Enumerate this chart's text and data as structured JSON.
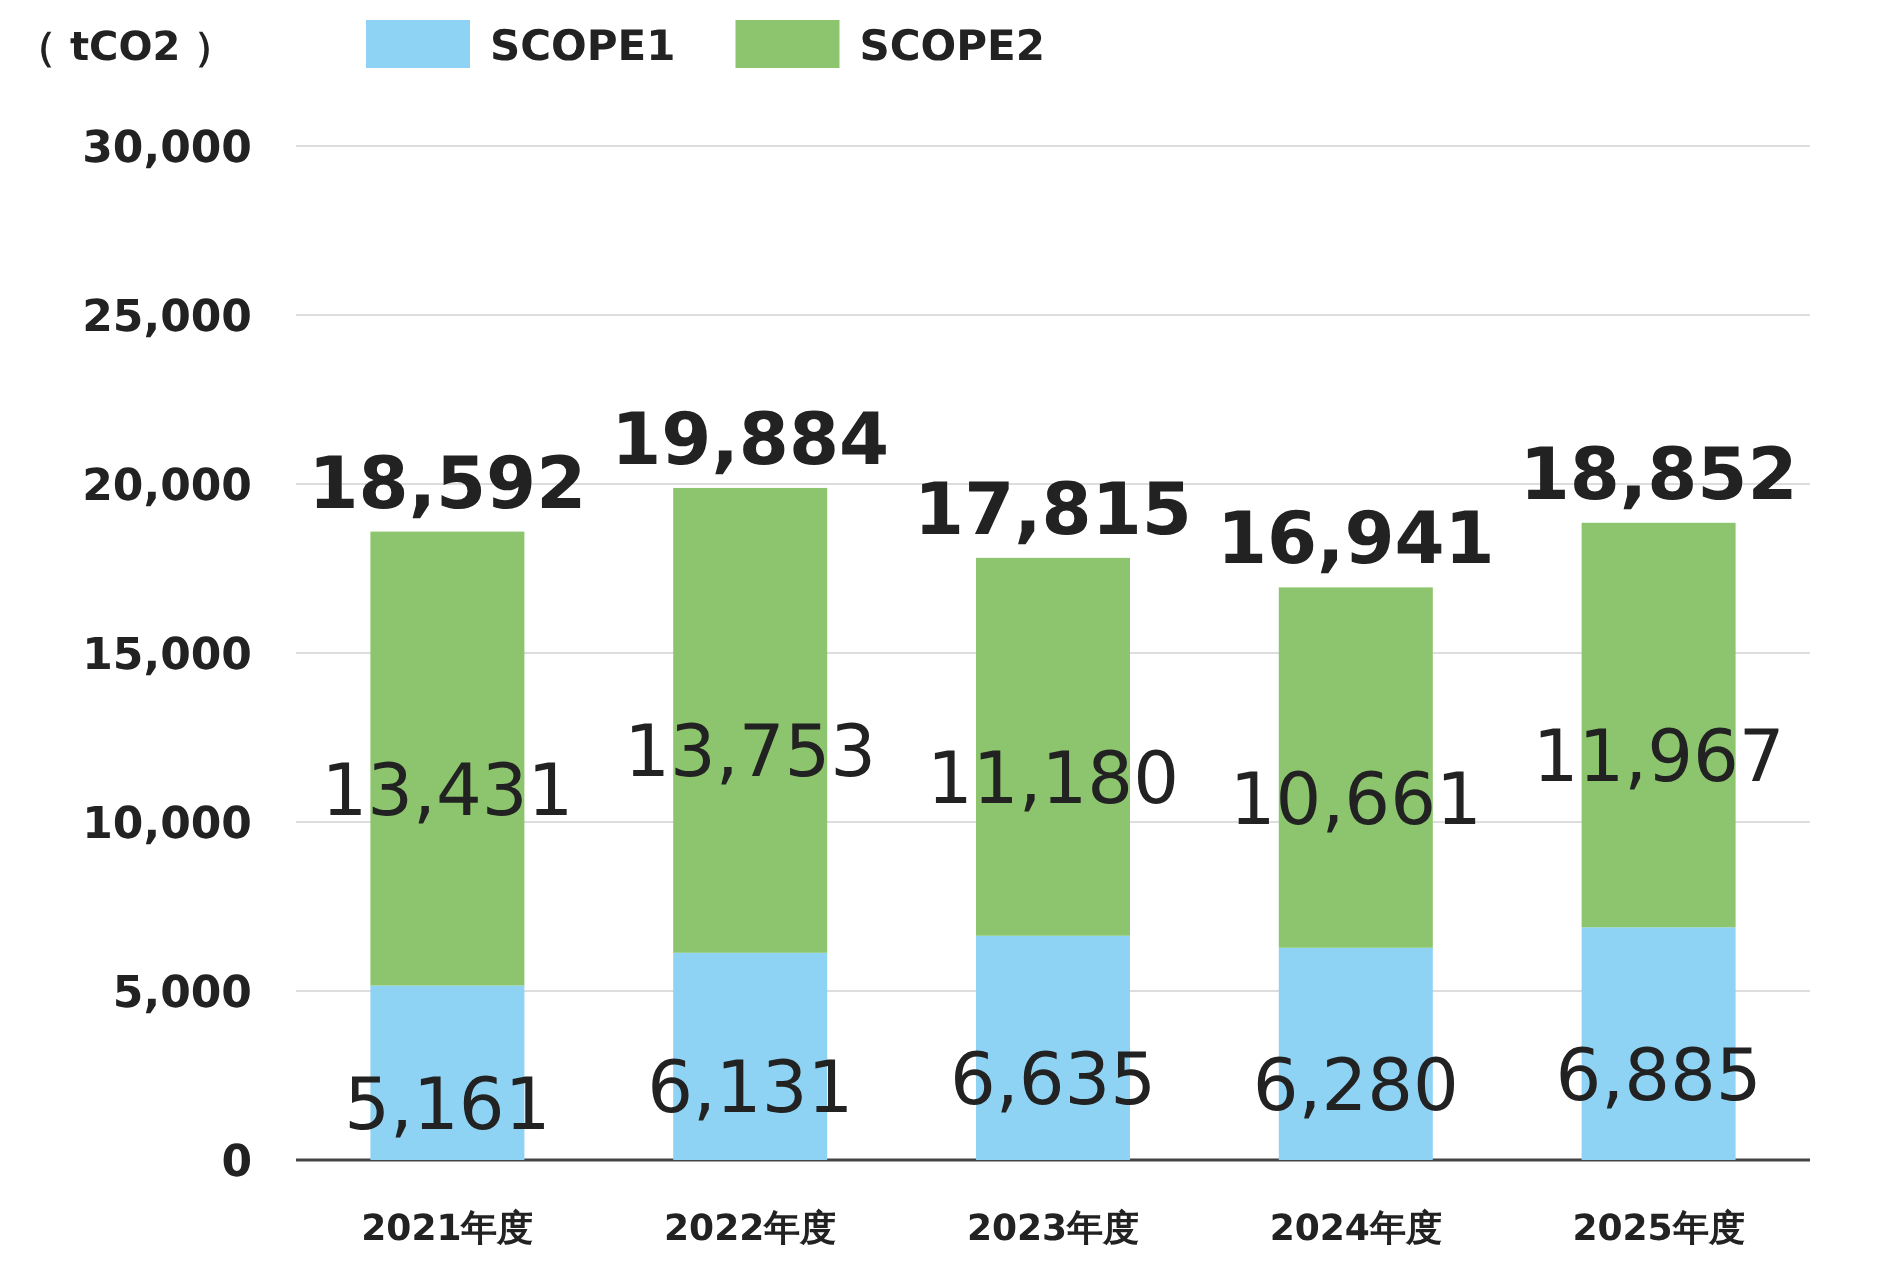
{
  "chart_data": {
    "type": "bar",
    "stacked": true,
    "ylabel": "（ tCO2 ）",
    "categories": [
      "2021年度",
      "2022年度",
      "2023年度",
      "2024年度",
      "2025年度"
    ],
    "series": [
      {
        "name": "SCOPE1",
        "color": "#8fd3f4",
        "values": [
          5161,
          6131,
          6635,
          6280,
          6885
        ],
        "value_labels": [
          "5,161",
          "6,131",
          "6,635",
          "6,280",
          "6,885"
        ]
      },
      {
        "name": "SCOPE2",
        "color": "#8cc56d",
        "values": [
          13431,
          13753,
          11180,
          10661,
          11967
        ],
        "value_labels": [
          "13,431",
          "13,753",
          "11,180",
          "10,661",
          "11,967"
        ]
      }
    ],
    "totals": [
      "18,592",
      "19,884",
      "17,815",
      "16,941",
      "18,852"
    ],
    "ylim": [
      0,
      30000
    ],
    "yticks": [
      0,
      {
        "value": 5000,
        "label": "5,000"
      },
      {
        "value": 10000,
        "label": "10,000"
      },
      {
        "value": 15000,
        "label": "15,000"
      },
      {
        "value": 20000,
        "label": "20,000"
      },
      {
        "value": 25000,
        "label": "25,000"
      },
      {
        "value": 30000,
        "label": "30,000"
      }
    ],
    "grid": "y",
    "legend": "top"
  }
}
